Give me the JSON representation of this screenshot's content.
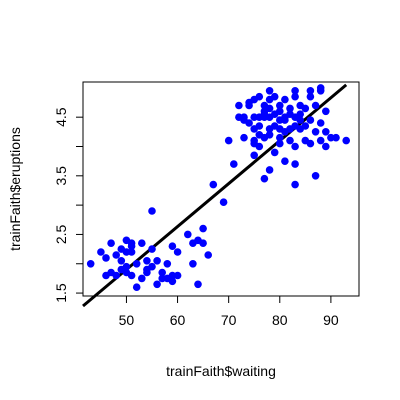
{
  "chart_data": {
    "type": "scatter",
    "xlabel": "trainFaith$waiting",
    "ylabel": "trainFaith$eruptions",
    "xlim": [
      41.5,
      95.5
    ],
    "ylim": [
      1.45,
      5.1
    ],
    "x_ticks": [
      50,
      60,
      70,
      80,
      90
    ],
    "y_ticks": [
      1.5,
      2.5,
      3.5,
      4.5
    ],
    "y_minor_ticks": [
      2.0,
      3.0,
      4.0
    ],
    "point_color": "#0000ff",
    "line_color": "#000000",
    "fit_line": {
      "x": [
        41.5,
        93
      ],
      "y": [
        1.28,
        5.05
      ]
    },
    "series": [
      {
        "points": [
          [
            43,
            2.0
          ],
          [
            45,
            2.2
          ],
          [
            46,
            1.8
          ],
          [
            46,
            2.1
          ],
          [
            47,
            1.85
          ],
          [
            47,
            2.35
          ],
          [
            48,
            1.8
          ],
          [
            48,
            2.15
          ],
          [
            49,
            1.9
          ],
          [
            49,
            2.05
          ],
          [
            49,
            2.25
          ],
          [
            50,
            1.95
          ],
          [
            50,
            2.4
          ],
          [
            50,
            2.2
          ],
          [
            50,
            1.85
          ],
          [
            51,
            1.8
          ],
          [
            51,
            2.2
          ],
          [
            51,
            2.35
          ],
          [
            51,
            2.3
          ],
          [
            52,
            1.6
          ],
          [
            52,
            2.0
          ],
          [
            53,
            1.75
          ],
          [
            53,
            2.35
          ],
          [
            54,
            1.85
          ],
          [
            54,
            1.9
          ],
          [
            54,
            2.05
          ],
          [
            55,
            2.9
          ],
          [
            55,
            1.95
          ],
          [
            55,
            2.25
          ],
          [
            56,
            1.65
          ],
          [
            56,
            2.05
          ],
          [
            57,
            1.85
          ],
          [
            57,
            1.75
          ],
          [
            58,
            2.0
          ],
          [
            58,
            1.75
          ],
          [
            59,
            1.8
          ],
          [
            59,
            1.7
          ],
          [
            59,
            2.3
          ],
          [
            60,
            1.8
          ],
          [
            60,
            2.2
          ],
          [
            62,
            2.5
          ],
          [
            63,
            2.35
          ],
          [
            63,
            2.0
          ],
          [
            64,
            1.65
          ],
          [
            64,
            2.4
          ],
          [
            65,
            2.35
          ],
          [
            65,
            2.6
          ],
          [
            66,
            2.15
          ],
          [
            67,
            3.35
          ],
          [
            69,
            3.05
          ],
          [
            70,
            4.1
          ],
          [
            71,
            3.7
          ],
          [
            72,
            4.7
          ],
          [
            72,
            4.5
          ],
          [
            73,
            4.45
          ],
          [
            73,
            4.5
          ],
          [
            73,
            4.15
          ],
          [
            74,
            4.4
          ],
          [
            74,
            4.7
          ],
          [
            74,
            4.75
          ],
          [
            75,
            3.85
          ],
          [
            75,
            4.05
          ],
          [
            75,
            4.3
          ],
          [
            75,
            4.5
          ],
          [
            75,
            4.1
          ],
          [
            75,
            4.8
          ],
          [
            76,
            4.0
          ],
          [
            76,
            4.2
          ],
          [
            76,
            4.35
          ],
          [
            76,
            4.5
          ],
          [
            76,
            4.85
          ],
          [
            77,
            3.45
          ],
          [
            77,
            4.15
          ],
          [
            77,
            4.5
          ],
          [
            77,
            4.55
          ],
          [
            77,
            4.6
          ],
          [
            77,
            4.7
          ],
          [
            78,
            3.6
          ],
          [
            78,
            4.2
          ],
          [
            78,
            4.3
          ],
          [
            78,
            4.5
          ],
          [
            78,
            4.65
          ],
          [
            78,
            4.8
          ],
          [
            78,
            4.95
          ],
          [
            79,
            3.9
          ],
          [
            79,
            4.35
          ],
          [
            79,
            4.55
          ],
          [
            79,
            4.85
          ],
          [
            80,
            4.05
          ],
          [
            80,
            4.15
          ],
          [
            80,
            4.3
          ],
          [
            80,
            4.45
          ],
          [
            80,
            4.6
          ],
          [
            80,
            4.7
          ],
          [
            81,
            3.75
          ],
          [
            81,
            4.25
          ],
          [
            81,
            4.45
          ],
          [
            81,
            4.5
          ],
          [
            81,
            4.8
          ],
          [
            82,
            4.1
          ],
          [
            82,
            4.3
          ],
          [
            82,
            4.55
          ],
          [
            82,
            4.65
          ],
          [
            83,
            3.35
          ],
          [
            83,
            3.7
          ],
          [
            83,
            4.0
          ],
          [
            83,
            4.35
          ],
          [
            83,
            4.5
          ],
          [
            83,
            4.85
          ],
          [
            83,
            4.95
          ],
          [
            84,
            4.3
          ],
          [
            84,
            4.45
          ],
          [
            84,
            4.55
          ],
          [
            84,
            4.7
          ],
          [
            85,
            4.1
          ],
          [
            85,
            4.35
          ],
          [
            85,
            4.65
          ],
          [
            86,
            4.05
          ],
          [
            86,
            4.45
          ],
          [
            86,
            4.85
          ],
          [
            86,
            4.95
          ],
          [
            87,
            3.5
          ],
          [
            87,
            4.25
          ],
          [
            87,
            4.7
          ],
          [
            88,
            4.1
          ],
          [
            88,
            4.4
          ],
          [
            88,
            4.95
          ],
          [
            88,
            5.0
          ],
          [
            89,
            4.0
          ],
          [
            89,
            4.25
          ],
          [
            89,
            4.6
          ],
          [
            90,
            4.15
          ],
          [
            91,
            4.15
          ],
          [
            93,
            4.1
          ]
        ]
      }
    ]
  }
}
